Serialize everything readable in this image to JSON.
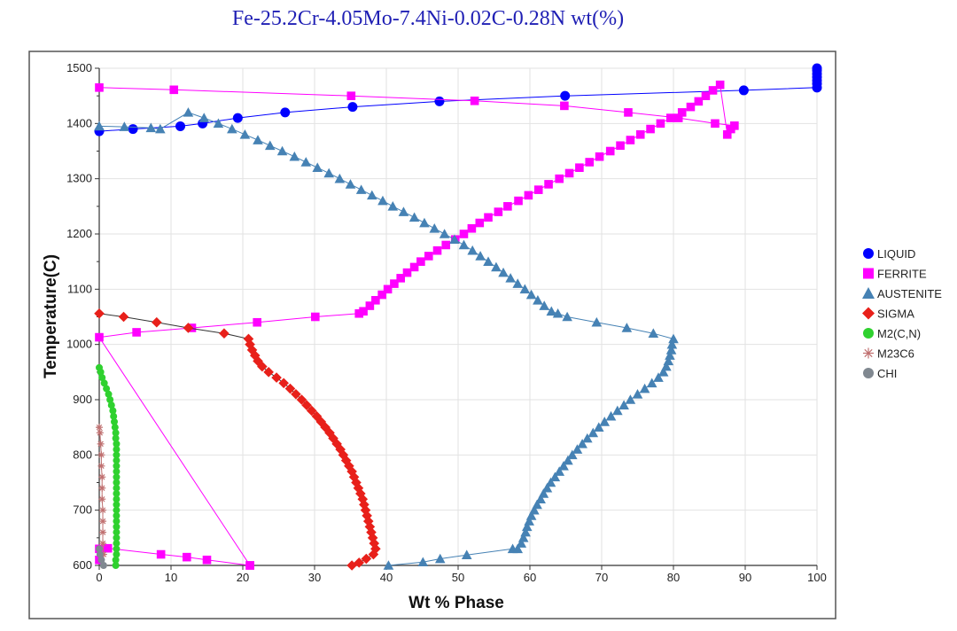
{
  "chart_data": {
    "type": "line",
    "title": "Fe-25.2Cr-4.05Mo-7.4Ni-0.02C-0.28N wt(%)",
    "xlabel": "Wt % Phase",
    "ylabel": "Temperature(C)",
    "xlim": [
      0,
      100
    ],
    "ylim": [
      600,
      1500
    ],
    "xticks": [
      0,
      10,
      20,
      30,
      40,
      50,
      60,
      70,
      80,
      90,
      100
    ],
    "yticks": [
      600,
      700,
      800,
      900,
      1000,
      1100,
      1200,
      1300,
      1400,
      1500
    ],
    "grid": true,
    "legend_position": "right",
    "series": [
      {
        "name": "LIQUID",
        "color": "#0000ff",
        "marker": "circle",
        "points": [
          [
            0,
            1386
          ],
          [
            4.7,
            1390
          ],
          [
            11.3,
            1395
          ],
          [
            14.4,
            1400
          ],
          [
            19.3,
            1410
          ],
          [
            25.9,
            1420
          ],
          [
            35.3,
            1430
          ],
          [
            47.4,
            1440
          ],
          [
            64.9,
            1450
          ],
          [
            89.8,
            1460
          ],
          [
            100,
            1465
          ],
          [
            100,
            1472
          ],
          [
            100,
            1478
          ],
          [
            100,
            1484
          ],
          [
            100,
            1490
          ],
          [
            100,
            1496
          ],
          [
            100,
            1500
          ]
        ]
      },
      {
        "name": "FERRITE",
        "color": "#ff00ff",
        "marker": "square",
        "points": [
          [
            0,
            610
          ],
          [
            0,
            630
          ],
          [
            1.2,
            631
          ],
          [
            8.6,
            620
          ],
          [
            12.2,
            615
          ],
          [
            15,
            610
          ],
          [
            21,
            600
          ],
          [
            21,
            600
          ],
          [
            0,
            1013
          ],
          [
            5.2,
            1022
          ],
          [
            12.9,
            1030
          ],
          [
            22,
            1040
          ],
          [
            30.1,
            1050
          ],
          [
            36.2,
            1056
          ],
          [
            36.8,
            1060
          ],
          [
            37.7,
            1070
          ],
          [
            38.5,
            1080
          ],
          [
            39.4,
            1090
          ],
          [
            40.2,
            1100
          ],
          [
            41.1,
            1110
          ],
          [
            42,
            1120
          ],
          [
            42.9,
            1130
          ],
          [
            43.9,
            1140
          ],
          [
            44.8,
            1150
          ],
          [
            45.9,
            1160
          ],
          [
            47.1,
            1170
          ],
          [
            48.3,
            1180
          ],
          [
            49.6,
            1190
          ],
          [
            50.8,
            1200
          ],
          [
            51.9,
            1210
          ],
          [
            53,
            1220
          ],
          [
            54.2,
            1230
          ],
          [
            55.6,
            1240
          ],
          [
            56.9,
            1250
          ],
          [
            58.4,
            1260
          ],
          [
            59.8,
            1270
          ],
          [
            61.2,
            1280
          ],
          [
            62.6,
            1290
          ],
          [
            64.1,
            1300
          ],
          [
            65.5,
            1310
          ],
          [
            66.9,
            1320
          ],
          [
            68.3,
            1330
          ],
          [
            69.7,
            1340
          ],
          [
            71.2,
            1350
          ],
          [
            72.6,
            1360
          ],
          [
            74,
            1370
          ],
          [
            75.4,
            1380
          ],
          [
            76.8,
            1390
          ],
          [
            78.2,
            1400
          ],
          [
            79.6,
            1410
          ],
          [
            81.2,
            1420
          ],
          [
            82.4,
            1430
          ],
          [
            83.5,
            1440
          ],
          [
            84.5,
            1450
          ],
          [
            85.5,
            1460
          ],
          [
            86.5,
            1470
          ],
          [
            87.5,
            1380
          ],
          [
            88,
            1390
          ],
          [
            88.5,
            1396
          ],
          [
            85.8,
            1400
          ],
          [
            80.7,
            1410
          ],
          [
            73.7,
            1420
          ],
          [
            64.8,
            1432
          ],
          [
            52.3,
            1441
          ],
          [
            35.1,
            1450
          ],
          [
            10.4,
            1461
          ],
          [
            0,
            1465
          ]
        ]
      },
      {
        "name": "AUSTENITE",
        "color": "#4682b4",
        "marker": "triangle",
        "points": [
          [
            40.3,
            600
          ],
          [
            45.1,
            606
          ],
          [
            47.5,
            612
          ],
          [
            51.2,
            619
          ],
          [
            57.6,
            630
          ],
          [
            58.3,
            630
          ],
          [
            58.8,
            640
          ],
          [
            59.1,
            650
          ],
          [
            59.4,
            660
          ],
          [
            59.6,
            670
          ],
          [
            59.9,
            680
          ],
          [
            60.2,
            690
          ],
          [
            60.6,
            700
          ],
          [
            61,
            710
          ],
          [
            61.5,
            720
          ],
          [
            61.9,
            730
          ],
          [
            62.4,
            740
          ],
          [
            62.9,
            750
          ],
          [
            63.5,
            760
          ],
          [
            64.1,
            770
          ],
          [
            64.7,
            780
          ],
          [
            65.3,
            790
          ],
          [
            65.9,
            800
          ],
          [
            66.6,
            810
          ],
          [
            67.3,
            820
          ],
          [
            68,
            830
          ],
          [
            68.8,
            840
          ],
          [
            69.6,
            850
          ],
          [
            70.4,
            860
          ],
          [
            71.3,
            870
          ],
          [
            72.2,
            880
          ],
          [
            73.1,
            890
          ],
          [
            74,
            900
          ],
          [
            75,
            910
          ],
          [
            76,
            920
          ],
          [
            77,
            930
          ],
          [
            77.9,
            940
          ],
          [
            78.6,
            950
          ],
          [
            79,
            960
          ],
          [
            79.3,
            970
          ],
          [
            79.5,
            980
          ],
          [
            79.7,
            990
          ],
          [
            79.8,
            1000
          ],
          [
            80,
            1010
          ],
          [
            77.2,
            1020
          ],
          [
            73.5,
            1030
          ],
          [
            69.3,
            1040
          ],
          [
            65.2,
            1050
          ],
          [
            63.9,
            1056
          ],
          [
            63,
            1060
          ],
          [
            62,
            1070
          ],
          [
            61.1,
            1080
          ],
          [
            60.2,
            1090
          ],
          [
            59.3,
            1100
          ],
          [
            58.3,
            1110
          ],
          [
            57.3,
            1120
          ],
          [
            56.3,
            1130
          ],
          [
            55.3,
            1140
          ],
          [
            54.2,
            1150
          ],
          [
            53.1,
            1160
          ],
          [
            52,
            1170
          ],
          [
            50.8,
            1180
          ],
          [
            49.5,
            1190
          ],
          [
            48.1,
            1200
          ],
          [
            46.7,
            1210
          ],
          [
            45.3,
            1220
          ],
          [
            43.9,
            1230
          ],
          [
            42.4,
            1240
          ],
          [
            40.9,
            1250
          ],
          [
            39.5,
            1260
          ],
          [
            38,
            1270
          ],
          [
            36.5,
            1280
          ],
          [
            35,
            1290
          ],
          [
            33.5,
            1300
          ],
          [
            32,
            1310
          ],
          [
            30.4,
            1320
          ],
          [
            28.8,
            1330
          ],
          [
            27.2,
            1340
          ],
          [
            25.5,
            1350
          ],
          [
            23.8,
            1360
          ],
          [
            22.1,
            1370
          ],
          [
            20.3,
            1380
          ],
          [
            18.5,
            1390
          ],
          [
            16.6,
            1400
          ],
          [
            14.6,
            1410
          ],
          [
            12.4,
            1420
          ],
          [
            8.5,
            1390
          ],
          [
            7.2,
            1392
          ],
          [
            3.5,
            1394
          ],
          [
            0,
            1395
          ]
        ]
      },
      {
        "name": "SIGMA",
        "color": "#e8201a",
        "marker": "diamond",
        "points": [
          [
            35.2,
            600
          ],
          [
            36.2,
            605
          ],
          [
            37.2,
            612
          ],
          [
            38.2,
            620
          ],
          [
            38.5,
            630
          ],
          [
            38.3,
            640
          ],
          [
            38.1,
            650
          ],
          [
            37.9,
            660
          ],
          [
            37.7,
            670
          ],
          [
            37.5,
            680
          ],
          [
            37.3,
            690
          ],
          [
            37.1,
            700
          ],
          [
            36.9,
            710
          ],
          [
            36.7,
            720
          ],
          [
            36.4,
            730
          ],
          [
            36.1,
            740
          ],
          [
            35.8,
            750
          ],
          [
            35.5,
            760
          ],
          [
            35.2,
            770
          ],
          [
            34.8,
            780
          ],
          [
            34.4,
            790
          ],
          [
            34,
            800
          ],
          [
            33.6,
            810
          ],
          [
            33.1,
            820
          ],
          [
            32.6,
            830
          ],
          [
            32.1,
            840
          ],
          [
            31.5,
            850
          ],
          [
            30.9,
            860
          ],
          [
            30.3,
            870
          ],
          [
            29.6,
            880
          ],
          [
            28.9,
            890
          ],
          [
            28.2,
            900
          ],
          [
            27.4,
            910
          ],
          [
            26.6,
            920
          ],
          [
            25.7,
            930
          ],
          [
            24.7,
            940
          ],
          [
            23.6,
            950
          ],
          [
            22.7,
            960
          ],
          [
            22.1,
            970
          ],
          [
            21.7,
            980
          ],
          [
            21.3,
            990
          ],
          [
            21,
            1000
          ],
          [
            20.8,
            1010
          ],
          [
            17.4,
            1020
          ],
          [
            12.4,
            1030
          ],
          [
            8,
            1040
          ],
          [
            3.4,
            1050
          ],
          [
            0,
            1056
          ]
        ]
      },
      {
        "name": "M2(C,N)",
        "color": "#2fd12f",
        "marker": "circle",
        "points": [
          [
            2.3,
            600
          ],
          [
            2.3,
            610
          ],
          [
            2.4,
            620
          ],
          [
            2.4,
            630
          ],
          [
            2.4,
            640
          ],
          [
            2.4,
            650
          ],
          [
            2.4,
            660
          ],
          [
            2.4,
            670
          ],
          [
            2.4,
            680
          ],
          [
            2.4,
            690
          ],
          [
            2.4,
            700
          ],
          [
            2.4,
            710
          ],
          [
            2.4,
            720
          ],
          [
            2.4,
            730
          ],
          [
            2.4,
            740
          ],
          [
            2.4,
            750
          ],
          [
            2.4,
            760
          ],
          [
            2.4,
            770
          ],
          [
            2.4,
            780
          ],
          [
            2.4,
            790
          ],
          [
            2.4,
            800
          ],
          [
            2.4,
            810
          ],
          [
            2.4,
            820
          ],
          [
            2.3,
            830
          ],
          [
            2.3,
            840
          ],
          [
            2.2,
            850
          ],
          [
            2.1,
            860
          ],
          [
            2,
            870
          ],
          [
            1.9,
            880
          ],
          [
            1.7,
            890
          ],
          [
            1.5,
            900
          ],
          [
            1.3,
            910
          ],
          [
            1,
            920
          ],
          [
            0.7,
            930
          ],
          [
            0.4,
            940
          ],
          [
            0.2,
            950
          ],
          [
            0,
            958
          ]
        ]
      },
      {
        "name": "M23C6",
        "color": "#c07070",
        "marker": "asterisk",
        "points": [
          [
            0.6,
            600
          ],
          [
            0.6,
            620
          ],
          [
            0.5,
            640
          ],
          [
            0.5,
            660
          ],
          [
            0.5,
            680
          ],
          [
            0.5,
            700
          ],
          [
            0.4,
            720
          ],
          [
            0.4,
            740
          ],
          [
            0.4,
            760
          ],
          [
            0.3,
            780
          ],
          [
            0.3,
            800
          ],
          [
            0.2,
            820
          ],
          [
            0.1,
            840
          ],
          [
            0,
            850
          ]
        ]
      },
      {
        "name": "CHI",
        "color": "#808890",
        "marker": "circle",
        "points": [
          [
            0.6,
            600
          ],
          [
            0.3,
            610
          ],
          [
            0.1,
            620
          ],
          [
            0,
            630
          ]
        ]
      }
    ]
  }
}
